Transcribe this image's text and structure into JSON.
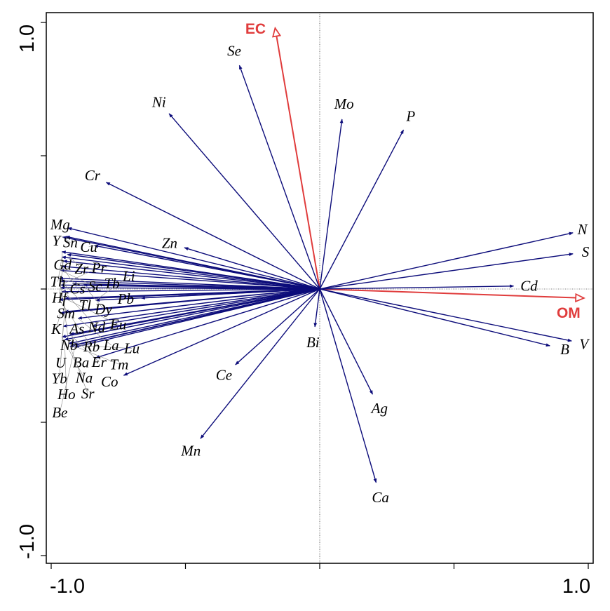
{
  "chart_data": {
    "type": "biplot",
    "title": "",
    "xlabel": "",
    "ylabel": "",
    "xlim": [
      -1.02,
      1.02
    ],
    "ylim": [
      -1.03,
      1.04
    ],
    "x_tick_labels": [
      "-1.0",
      "1.0"
    ],
    "y_tick_labels": [
      "-1.0",
      "1.0"
    ],
    "x_ticks": [
      -1.0,
      -0.5,
      0,
      0.5,
      1.0
    ],
    "y_ticks": [
      -1.0,
      -0.5,
      0,
      0.5,
      1.0
    ],
    "colors": {
      "species": "#0c0c7a",
      "environment": "#e03c3c"
    },
    "environment": [
      {
        "name": "EC",
        "x": -0.166,
        "y": 0.979
      },
      {
        "name": "OM",
        "x": 0.984,
        "y": -0.034
      }
    ],
    "species": [
      {
        "name": "Se",
        "x": -0.299,
        "y": 0.839
      },
      {
        "name": "Ni",
        "x": -0.561,
        "y": 0.658
      },
      {
        "name": "Mo",
        "x": 0.083,
        "y": 0.637
      },
      {
        "name": "P",
        "x": 0.312,
        "y": 0.597
      },
      {
        "name": "Cr",
        "x": -0.795,
        "y": 0.4
      },
      {
        "name": "Zn",
        "x": -0.504,
        "y": 0.155
      },
      {
        "name": "N",
        "x": 0.943,
        "y": 0.211
      },
      {
        "name": "S",
        "x": 0.943,
        "y": 0.132
      },
      {
        "name": "Cd",
        "x": 0.722,
        "y": 0.011
      },
      {
        "name": "V",
        "x": 0.938,
        "y": -0.195
      },
      {
        "name": "B",
        "x": 0.857,
        "y": -0.213
      },
      {
        "name": "Bi",
        "x": -0.018,
        "y": -0.142
      },
      {
        "name": "Ag",
        "x": 0.197,
        "y": -0.395
      },
      {
        "name": "Ca",
        "x": 0.21,
        "y": -0.726
      },
      {
        "name": "Ce",
        "x": -0.314,
        "y": -0.284
      },
      {
        "name": "Mn",
        "x": -0.444,
        "y": -0.561
      },
      {
        "name": "Co",
        "x": -0.73,
        "y": -0.324
      },
      {
        "name": "Ba",
        "x": -0.834,
        "y": -0.258
      },
      {
        "name": "Pb",
        "x": -0.665,
        "y": -0.034
      },
      {
        "name": "As",
        "x": -0.847,
        "y": -0.139
      },
      {
        "name": "Mg",
        "x": -0.938,
        "y": 0.229
      },
      {
        "name": "Y",
        "x": -0.945,
        "y": 0.197
      },
      {
        "name": "Sn",
        "x": -0.958,
        "y": 0.195
      },
      {
        "name": "Cu",
        "x": -0.839,
        "y": 0.163
      },
      {
        "name": "Gd",
        "x": -0.96,
        "y": 0.14
      },
      {
        "name": "Zr",
        "x": -0.94,
        "y": 0.13
      },
      {
        "name": "Th",
        "x": -0.96,
        "y": 0.12
      },
      {
        "name": "Hf",
        "x": -0.955,
        "y": 0.105
      },
      {
        "name": "Cs",
        "x": -0.96,
        "y": 0.085
      },
      {
        "name": "Sc",
        "x": -0.965,
        "y": 0.07
      },
      {
        "name": "Sm",
        "x": -0.97,
        "y": 0.04
      },
      {
        "name": "Tl",
        "x": -0.965,
        "y": 0.03
      },
      {
        "name": "Pr",
        "x": -0.965,
        "y": 0.015
      },
      {
        "name": "Dy",
        "x": -0.88,
        "y": 0.015
      },
      {
        "name": "Tb",
        "x": -0.92,
        "y": 0.02
      },
      {
        "name": "Nd",
        "x": -0.965,
        "y": 0.005
      },
      {
        "name": "Nb",
        "x": -0.96,
        "y": -0.01
      },
      {
        "name": "Rb",
        "x": -0.97,
        "y": -0.04
      },
      {
        "name": "Eu",
        "x": -0.95,
        "y": -0.035
      },
      {
        "name": "Li",
        "x": -0.834,
        "y": -0.042
      },
      {
        "name": "K",
        "x": -0.965,
        "y": -0.09
      },
      {
        "name": "U",
        "x": -0.95,
        "y": -0.085
      },
      {
        "name": "La",
        "x": -0.9,
        "y": -0.11
      },
      {
        "name": "Yb",
        "x": -0.955,
        "y": -0.14
      },
      {
        "name": "Er",
        "x": -0.93,
        "y": -0.17
      },
      {
        "name": "Na",
        "x": -0.96,
        "y": -0.18
      },
      {
        "name": "Ho",
        "x": -0.95,
        "y": -0.19
      },
      {
        "name": "Tm",
        "x": -0.935,
        "y": -0.205
      },
      {
        "name": "Sr",
        "x": -0.93,
        "y": -0.215
      },
      {
        "name": "Lu",
        "x": -0.915,
        "y": -0.21
      },
      {
        "name": "Be",
        "x": -0.912,
        "y": -0.218
      }
    ]
  }
}
